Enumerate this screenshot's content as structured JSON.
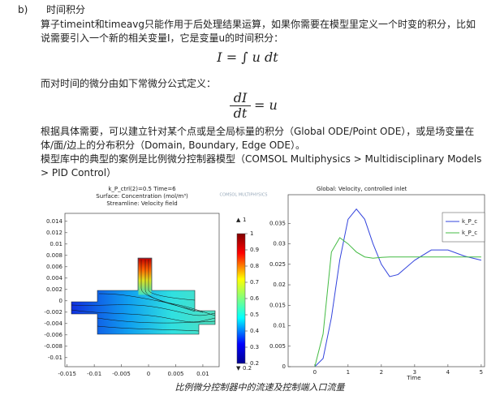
{
  "heading": {
    "label": "b)",
    "title": "时间积分"
  },
  "para1": "算子timeint和timeavg只能作用于后处理结果运算，如果你需要在模型里定义一个时变的积分，比如说需要引入一个新的相关变量I，它是变量u的时间积分：",
  "formula1": "I = ∫ u dt",
  "para2": "而对时间的微分由如下常微分公式定义：",
  "formula2": {
    "num": "dI",
    "den": "dt",
    "rhs": "= u"
  },
  "para3": "根据具体需要，可以建立针对某个点或是全局标量的积分（Global ODE/Point ODE），或是场变量在体/面/边上的分布积分（Domain, Boundary, Edge ODE）。",
  "para4": "模型库中的典型的案例是比例微分控制器模型（COMSOL Multiphysics > Multidisciplinary Models > PID Control）",
  "figure": {
    "left": {
      "title": [
        "k_P_ctrl(2)=0.5 Time=6",
        "Surface: Concentration (mol/m³)",
        "Streamline: Velocity field"
      ],
      "watermark": "COMSOL MULTIPHYSICS",
      "xlim": [
        -0.0154,
        0.013
      ],
      "ylim": [
        -0.0116,
        0.0154
      ],
      "xticks": [
        -0.015,
        -0.01,
        -0.005,
        0,
        0.005,
        0.01
      ],
      "yticks": [
        0.014,
        0.012,
        0.01,
        0.008,
        0.006,
        0.004,
        0.002,
        0,
        -0.002,
        -0.004,
        -0.006,
        -0.008,
        -0.01
      ],
      "colorbar": {
        "lim": [
          0.2,
          1
        ],
        "ticks": [
          1,
          0.9,
          0.8,
          0.7,
          0.6,
          0.5,
          0.4,
          0.3,
          0.2
        ],
        "max": 1,
        "min": 0.2
      }
    },
    "right": {
      "title": "Global: Velocity, controlled inlet",
      "xlabel": "Time",
      "xlim": [
        -0.8,
        5.1
      ],
      "ylim": [
        0,
        0.042
      ],
      "xticks": [
        0,
        1,
        2,
        3,
        4,
        5
      ],
      "yticks": [
        0,
        0.005,
        0.01,
        0.015,
        0.02,
        0.025,
        0.03,
        0.035
      ],
      "x": [
        0,
        0.25,
        0.5,
        0.75,
        1,
        1.25,
        1.5,
        1.75,
        2,
        2.25,
        2.5,
        3,
        3.5,
        4,
        4.5,
        5
      ],
      "series": [
        {
          "name": "k_P_c",
          "color": "#3344dd",
          "values": [
            0,
            0.002,
            0.012,
            0.026,
            0.036,
            0.0385,
            0.036,
            0.03,
            0.025,
            0.022,
            0.0225,
            0.026,
            0.0285,
            0.0285,
            0.027,
            0.026
          ]
        },
        {
          "name": "k_P_c",
          "color": "#44bb44",
          "values": [
            0,
            0.008,
            0.028,
            0.0315,
            0.03,
            0.028,
            0.0268,
            0.0265,
            0.0267,
            0.0268,
            0.0268,
            0.0268,
            0.0268,
            0.0268,
            0.0268,
            0.0268
          ]
        }
      ]
    },
    "caption": "比例微分控制器中的流速及控制端入口流量"
  }
}
